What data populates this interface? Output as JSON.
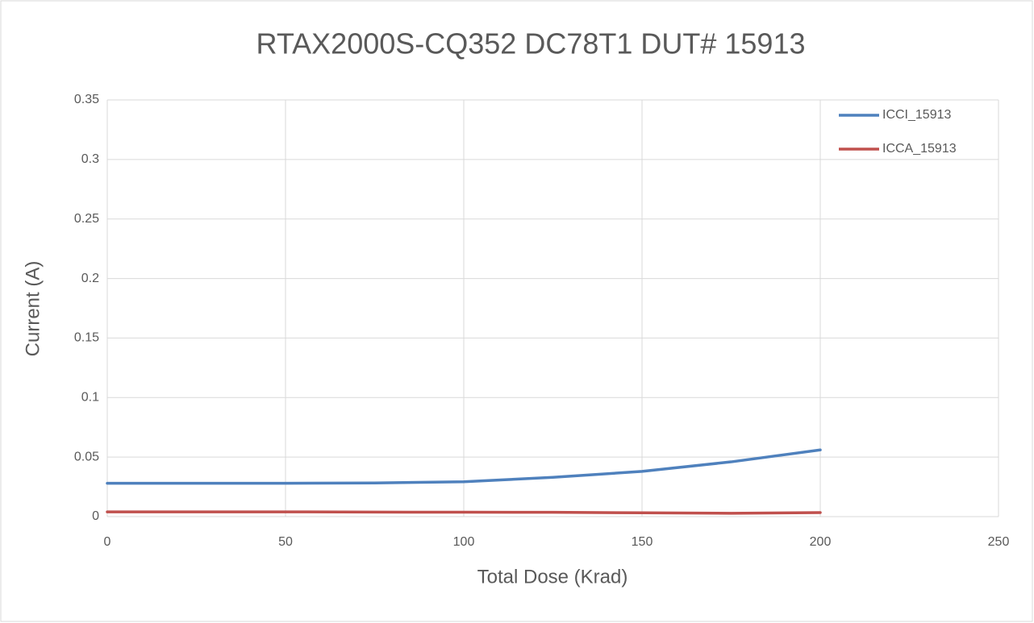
{
  "chart_data": {
    "type": "line",
    "title": "RTAX2000S-CQ352 DC78T1 DUT# 15913",
    "x_label": "Total Dose (Krad)",
    "y_label": "Current (A)",
    "x": [
      0,
      25,
      50,
      75,
      100,
      125,
      150,
      175,
      200
    ],
    "series": [
      {
        "name": "ICCI_15913",
        "color": "#4f81bd",
        "values": [
          0.028,
          0.028,
          0.028,
          0.0283,
          0.0293,
          0.033,
          0.038,
          0.046,
          0.056
        ]
      },
      {
        "name": "ICCA_15913",
        "color": "#c0504d",
        "values": [
          0.004,
          0.004,
          0.004,
          0.0038,
          0.0037,
          0.0036,
          0.0032,
          0.0028,
          0.0034
        ]
      }
    ],
    "xlim": [
      0,
      250
    ],
    "xticks": [
      0,
      50,
      100,
      150,
      200,
      250
    ],
    "ylim": [
      0,
      0.35
    ],
    "yticks": [
      0,
      0.05,
      0.1,
      0.15,
      0.2,
      0.25,
      0.3,
      0.35
    ],
    "grid": true,
    "legend": "top-right"
  }
}
